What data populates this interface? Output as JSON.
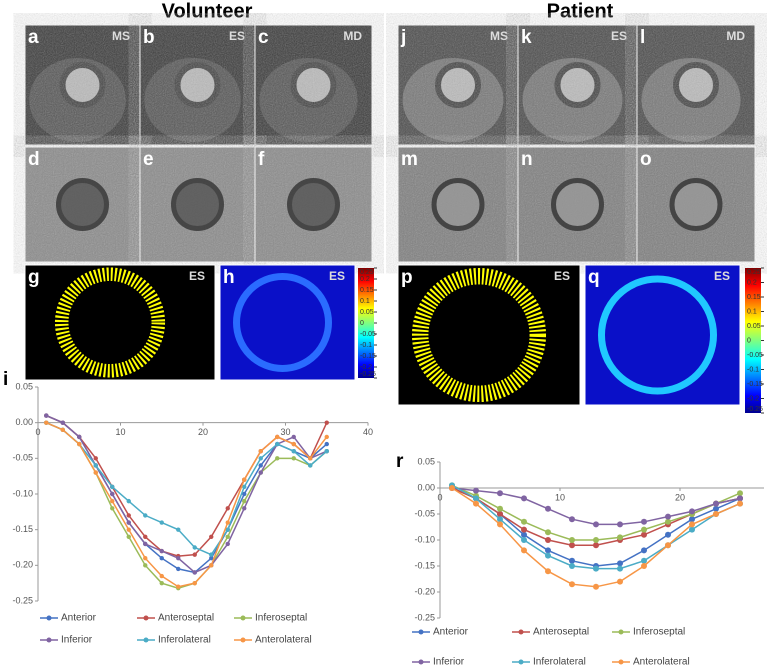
{
  "headings": [
    "Volunteer",
    "Patient"
  ],
  "panels": [
    {
      "label": "a",
      "tag": "MS"
    },
    {
      "label": "b",
      "tag": "ES"
    },
    {
      "label": "c",
      "tag": "MD"
    },
    {
      "label": "d"
    },
    {
      "label": "e"
    },
    {
      "label": "f"
    },
    {
      "label": "g",
      "tag": "ES"
    },
    {
      "label": "h",
      "tag": "ES"
    },
    {
      "label": "j",
      "tag": "MS"
    },
    {
      "label": "k",
      "tag": "ES"
    },
    {
      "label": "l",
      "tag": "MD"
    },
    {
      "label": "m"
    },
    {
      "label": "n"
    },
    {
      "label": "o"
    },
    {
      "label": "p",
      "tag": "ES"
    },
    {
      "label": "q",
      "tag": "ES"
    }
  ],
  "colorbar": {
    "colormap": "jet",
    "lim": [
      -0.25,
      0.25
    ],
    "ticks": [
      0.25,
      0.2,
      0.15,
      0.1,
      0.05,
      0,
      -0.05,
      -0.1,
      -0.15,
      -0.2,
      -0.25
    ]
  },
  "chart_data": [
    {
      "type": "line",
      "panel_label": "i",
      "x": [
        1,
        3,
        5,
        7,
        9,
        11,
        13,
        15,
        17,
        19,
        21,
        23,
        25,
        27,
        29,
        31,
        33,
        35
      ],
      "xlim": [
        0,
        40
      ],
      "xticks": [
        0,
        10,
        20,
        30,
        40
      ],
      "ylim": [
        -0.25,
        0.05
      ],
      "yticks": [
        0.05,
        {
          "value": 0,
          "label": "0.00"
        },
        {
          "value": -0.05,
          "label": "-0.05"
        },
        {
          "value": -0.1,
          "label": "-0.10"
        },
        -0.15,
        {
          "value": -0.2,
          "label": "-0.20"
        },
        -0.25
      ],
      "series": [
        {
          "name": "Anterior",
          "color": "#4472c4",
          "values": [
            0.01,
            0.0,
            -0.02,
            -0.06,
            -0.1,
            -0.14,
            -0.17,
            -0.19,
            -0.205,
            -0.21,
            -0.19,
            -0.15,
            -0.1,
            -0.06,
            -0.03,
            -0.04,
            -0.05,
            -0.03
          ]
        },
        {
          "name": "Anteroseptal",
          "color": "#c0504d",
          "values": [
            0.01,
            0.0,
            -0.02,
            -0.05,
            -0.09,
            -0.13,
            -0.16,
            -0.18,
            -0.187,
            -0.185,
            -0.16,
            -0.12,
            -0.08,
            -0.04,
            -0.02,
            -0.03,
            -0.05,
            0.0
          ]
        },
        {
          "name": "Inferoseptal",
          "color": "#9bbb59",
          "values": [
            0.0,
            -0.01,
            -0.03,
            -0.07,
            -0.12,
            -0.16,
            -0.2,
            -0.225,
            -0.232,
            -0.225,
            -0.2,
            -0.16,
            -0.11,
            -0.07,
            -0.05,
            -0.05,
            -0.06,
            -0.04
          ]
        },
        {
          "name": "Inferior",
          "color": "#8064a2",
          "values": [
            0.01,
            0.0,
            -0.02,
            -0.06,
            -0.1,
            -0.14,
            -0.17,
            -0.18,
            -0.19,
            -0.21,
            -0.2,
            -0.17,
            -0.12,
            -0.07,
            -0.03,
            -0.02,
            -0.05,
            -0.04
          ]
        },
        {
          "name": "Inferolateral",
          "color": "#4bacc6",
          "values": [
            0.0,
            -0.01,
            -0.03,
            -0.06,
            -0.09,
            -0.11,
            -0.13,
            -0.14,
            -0.15,
            -0.175,
            -0.185,
            -0.15,
            -0.09,
            -0.05,
            -0.03,
            -0.04,
            -0.06,
            -0.04
          ]
        },
        {
          "name": "Anterolateral",
          "color": "#f79646",
          "values": [
            0.0,
            -0.01,
            -0.03,
            -0.07,
            -0.11,
            -0.15,
            -0.19,
            -0.215,
            -0.23,
            -0.225,
            -0.2,
            -0.14,
            -0.08,
            -0.04,
            -0.02,
            -0.03,
            -0.05,
            -0.02
          ]
        }
      ]
    },
    {
      "type": "line",
      "panel_label": "r",
      "x": [
        1,
        3,
        5,
        7,
        9,
        11,
        13,
        15,
        17,
        19,
        21,
        23,
        25
      ],
      "xlim": [
        0,
        27
      ],
      "xticks": [
        0,
        10,
        20
      ],
      "ylim": [
        -0.25,
        0.05
      ],
      "yticks": [
        0.05,
        {
          "value": 0,
          "label": "0.00"
        },
        {
          "value": -0.05,
          "label": "-0.05"
        },
        {
          "value": -0.1,
          "label": "-0.10"
        },
        -0.15,
        {
          "value": -0.2,
          "label": "-0.20"
        },
        -0.25
      ],
      "series": [
        {
          "name": "Anterior",
          "color": "#4472c4",
          "values": [
            0.0,
            -0.02,
            -0.05,
            -0.09,
            -0.12,
            -0.14,
            -0.15,
            -0.145,
            -0.12,
            -0.09,
            -0.06,
            -0.04,
            -0.02
          ]
        },
        {
          "name": "Anteroseptal",
          "color": "#c0504d",
          "values": [
            0.0,
            -0.02,
            -0.05,
            -0.08,
            -0.1,
            -0.11,
            -0.11,
            -0.1,
            -0.09,
            -0.07,
            -0.05,
            -0.03,
            -0.02
          ]
        },
        {
          "name": "Inferoseptal",
          "color": "#9bbb59",
          "values": [
            0.005,
            -0.015,
            -0.04,
            -0.065,
            -0.085,
            -0.1,
            -0.1,
            -0.095,
            -0.08,
            -0.065,
            -0.05,
            -0.03,
            -0.01
          ]
        },
        {
          "name": "Inferior",
          "color": "#8064a2",
          "values": [
            0.0,
            -0.005,
            -0.01,
            -0.02,
            -0.04,
            -0.06,
            -0.07,
            -0.07,
            -0.065,
            -0.055,
            -0.045,
            -0.03,
            -0.02
          ]
        },
        {
          "name": "Inferolateral",
          "color": "#4bacc6",
          "values": [
            0.005,
            -0.02,
            -0.06,
            -0.1,
            -0.13,
            -0.15,
            -0.155,
            -0.155,
            -0.14,
            -0.11,
            -0.08,
            -0.05,
            -0.03
          ]
        },
        {
          "name": "Anterolateral",
          "color": "#f79646",
          "values": [
            0.0,
            -0.03,
            -0.07,
            -0.12,
            -0.16,
            -0.185,
            -0.19,
            -0.18,
            -0.15,
            -0.11,
            -0.07,
            -0.05,
            -0.03
          ]
        }
      ]
    }
  ]
}
